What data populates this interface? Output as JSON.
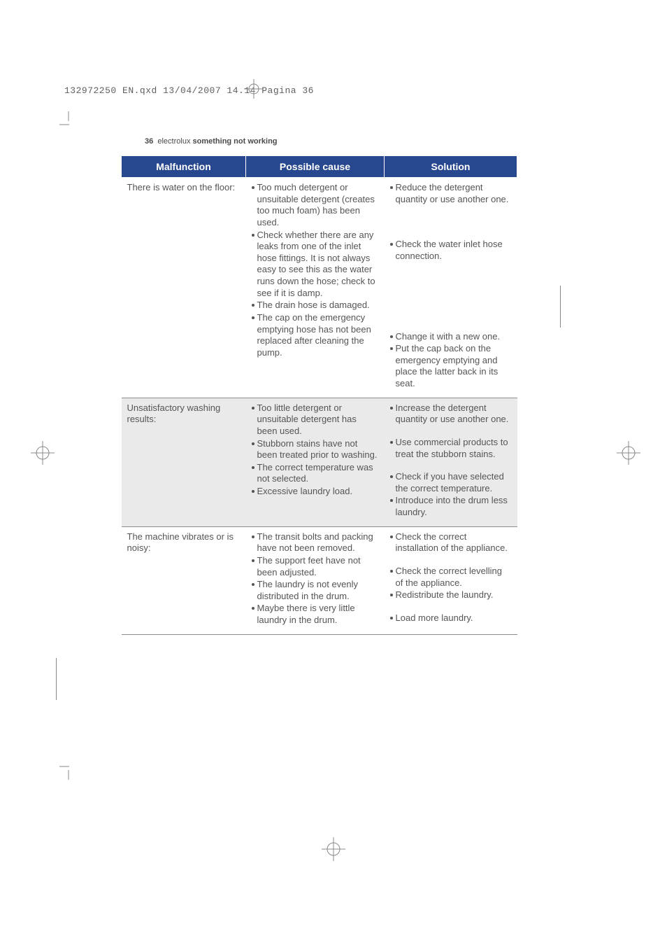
{
  "print_header": "132972250 EN.qxd  13/04/2007  14.14  Pagina  36",
  "page_num": "36",
  "brand": "electrolux",
  "section_title": "something not working",
  "headers": {
    "malfunction": "Malfunction",
    "cause": "Possible cause",
    "solution": "Solution"
  },
  "rows": [
    {
      "shaded": false,
      "malfunction": "There is water on the floor:",
      "causes": [
        "Too much detergent or unsuitable detergent (creates too much foam) has been used.",
        "Check whether there are any leaks from one of the inlet hose fittings. It is not always easy to see this as the water runs down the hose; check to see if it is damp.",
        "The drain hose is damaged.",
        "The cap on the emergency emptying hose has not been replaced after cleaning the pump."
      ],
      "solutions": [
        "Reduce the detergent quantity or use another one.",
        "Check the water inlet hose connection.",
        "Change it with a new one.",
        "Put the cap back on the emergency emptying and place the latter back in its seat."
      ],
      "solution_spacers": [
        0,
        48,
        98,
        0
      ]
    },
    {
      "shaded": true,
      "malfunction": "Unsatisfactory washing results:",
      "causes": [
        "Too little detergent or unsuitable detergent has been used.",
        "Stubborn stains have not been treated prior to washing.",
        "The correct temperature was not selected.",
        "Excessive laundry load."
      ],
      "solutions": [
        "Increase the detergent quantity or use another one.",
        "Use commercial products to treat the stubborn stains.",
        "Check if you have selected the correct temperature.",
        "Introduce into the drum less laundry."
      ],
      "solution_spacers": [
        0,
        16,
        16,
        0
      ]
    },
    {
      "shaded": false,
      "malfunction": "The machine vibrates or is noisy:",
      "causes": [
        "The transit bolts and packing have not been removed.",
        "The support feet have not been adjusted.",
        "The laundry is not evenly distributed in the drum.",
        "Maybe there is very little laundry in the drum."
      ],
      "solutions": [
        "Check the correct installation of the appliance.",
        "Check the correct levelling of the appliance.",
        "Redistribute the laundry.",
        "Load more laundry."
      ],
      "solution_spacers": [
        0,
        16,
        0,
        16
      ]
    }
  ],
  "colors": {
    "header_bg": "#27488f",
    "header_text": "#ffffff",
    "row_border": "#8c8c8c",
    "shaded_bg": "#eaeaea",
    "body_text": "#555555",
    "crop_mark": "#888888"
  }
}
